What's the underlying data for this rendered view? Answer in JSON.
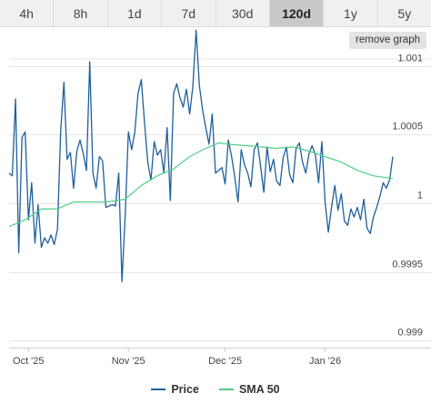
{
  "tabs": [
    {
      "label": "4h",
      "active": false
    },
    {
      "label": "8h",
      "active": false
    },
    {
      "label": "1d",
      "active": false
    },
    {
      "label": "7d",
      "active": false
    },
    {
      "label": "30d",
      "active": false
    },
    {
      "label": "120d",
      "active": true
    },
    {
      "label": "1y",
      "active": false
    },
    {
      "label": "5y",
      "active": false
    }
  ],
  "remove_graph_label": "remove graph",
  "colors": {
    "price": "#1f5f9a",
    "sma": "#4fce8a",
    "grid": "#e6e6e6"
  },
  "chart_data": {
    "type": "line",
    "title": "",
    "xlabel": "",
    "ylabel": "",
    "ylim": [
      0.99895,
      1.00105
    ],
    "yticks": [
      {
        "value": 0.999,
        "label": "0.999"
      },
      {
        "value": 0.9995,
        "label": "0.9995"
      },
      {
        "value": 1.0,
        "label": "1"
      },
      {
        "value": 1.0005,
        "label": "1.0005"
      },
      {
        "value": 1.001,
        "label": "1.001"
      }
    ],
    "xlim": [
      "2025-09-25",
      "2026-01-22"
    ],
    "xticks": [
      {
        "date": "2025-10-01",
        "label": "Oct '25"
      },
      {
        "date": "2025-11-01",
        "label": "Nov '25"
      },
      {
        "date": "2025-12-01",
        "label": "Dec '25"
      },
      {
        "date": "2026-01-01",
        "label": "Jan '26"
      }
    ],
    "grid": true,
    "legend_position": "bottom",
    "series": [
      {
        "name": "Price",
        "points": [
          [
            "2025-09-25",
            1.00022
          ],
          [
            "2025-09-26",
            1.0002
          ],
          [
            "2025-09-27",
            1.00076
          ],
          [
            "2025-09-28",
            0.99964
          ],
          [
            "2025-09-29",
            1.00048
          ],
          [
            "2025-09-30",
            1.00052
          ],
          [
            "2025-10-01",
            0.99988
          ],
          [
            "2025-10-02",
            1.00015
          ],
          [
            "2025-10-03",
            0.99971
          ],
          [
            "2025-10-04",
            0.99999
          ],
          [
            "2025-10-05",
            0.99968
          ],
          [
            "2025-10-06",
            0.99975
          ],
          [
            "2025-10-07",
            0.99971
          ],
          [
            "2025-10-08",
            0.99977
          ],
          [
            "2025-10-09",
            0.9997
          ],
          [
            "2025-10-10",
            0.99981
          ],
          [
            "2025-10-11",
            1.00052
          ],
          [
            "2025-10-12",
            1.00088
          ],
          [
            "2025-10-13",
            1.00032
          ],
          [
            "2025-10-14",
            1.00037
          ],
          [
            "2025-10-15",
            1.00011
          ],
          [
            "2025-10-16",
            1.00038
          ],
          [
            "2025-10-17",
            1.00046
          ],
          [
            "2025-10-18",
            1.00036
          ],
          [
            "2025-10-19",
            1.00024
          ],
          [
            "2025-10-20",
            1.00103
          ],
          [
            "2025-10-21",
            1.00022
          ],
          [
            "2025-10-22",
            1.00011
          ],
          [
            "2025-10-23",
            1.00034
          ],
          [
            "2025-10-24",
            1.00031
          ],
          [
            "2025-10-25",
            0.99997
          ],
          [
            "2025-10-26",
            0.99998
          ],
          [
            "2025-10-27",
            0.99999
          ],
          [
            "2025-10-28",
            0.99998
          ],
          [
            "2025-10-29",
            1.00022
          ],
          [
            "2025-10-30",
            0.99943
          ],
          [
            "2025-10-31",
            0.99991
          ],
          [
            "2025-11-01",
            1.00052
          ],
          [
            "2025-11-02",
            1.00039
          ],
          [
            "2025-11-03",
            1.00052
          ],
          [
            "2025-11-04",
            1.0008
          ],
          [
            "2025-11-05",
            1.0009
          ],
          [
            "2025-11-06",
            1.00059
          ],
          [
            "2025-11-07",
            1.0003
          ],
          [
            "2025-11-08",
            1.00017
          ],
          [
            "2025-11-09",
            1.00045
          ],
          [
            "2025-11-10",
            1.00035
          ],
          [
            "2025-11-11",
            1.00039
          ],
          [
            "2025-11-12",
            1.00022
          ],
          [
            "2025-11-13",
            1.00055
          ],
          [
            "2025-11-14",
            1.00002
          ],
          [
            "2025-11-15",
            1.0008
          ],
          [
            "2025-11-16",
            1.00087
          ],
          [
            "2025-11-17",
            1.00077
          ],
          [
            "2025-11-18",
            1.0007
          ],
          [
            "2025-11-19",
            1.00083
          ],
          [
            "2025-11-20",
            1.00065
          ],
          [
            "2025-11-21",
            1.00085
          ],
          [
            "2025-11-22",
            1.00126
          ],
          [
            "2025-11-23",
            1.00086
          ],
          [
            "2025-11-24",
            1.00068
          ],
          [
            "2025-11-25",
            1.00055
          ],
          [
            "2025-11-26",
            1.00043
          ],
          [
            "2025-11-27",
            1.00065
          ],
          [
            "2025-11-28",
            1.00022
          ],
          [
            "2025-11-29",
            1.00024
          ],
          [
            "2025-11-30",
            1.00026
          ],
          [
            "2025-12-01",
            1.00014
          ],
          [
            "2025-12-02",
            1.00046
          ],
          [
            "2025-12-03",
            1.00034
          ],
          [
            "2025-12-04",
            1.00019
          ],
          [
            "2025-12-05",
            1.00001
          ],
          [
            "2025-12-06",
            1.00039
          ],
          [
            "2025-12-07",
            1.00028
          ],
          [
            "2025-12-08",
            1.00022
          ],
          [
            "2025-12-09",
            1.00012
          ],
          [
            "2025-12-10",
            1.00039
          ],
          [
            "2025-12-11",
            1.00044
          ],
          [
            "2025-12-12",
            1.00027
          ],
          [
            "2025-12-13",
            1.00008
          ],
          [
            "2025-12-14",
            1.00041
          ],
          [
            "2025-12-15",
            1.00023
          ],
          [
            "2025-12-16",
            1.00032
          ],
          [
            "2025-12-17",
            1.00016
          ],
          [
            "2025-12-18",
            1.00013
          ],
          [
            "2025-12-19",
            1.00033
          ],
          [
            "2025-12-20",
            1.00041
          ],
          [
            "2025-12-21",
            1.00021
          ],
          [
            "2025-12-22",
            1.00015
          ],
          [
            "2025-12-23",
            1.0004
          ],
          [
            "2025-12-24",
            1.00044
          ],
          [
            "2025-12-25",
            1.0003
          ],
          [
            "2025-12-26",
            1.00022
          ],
          [
            "2025-12-27",
            1.00036
          ],
          [
            "2025-12-28",
            1.00042
          ],
          [
            "2025-12-29",
            1.00035
          ],
          [
            "2025-12-30",
            1.00015
          ],
          [
            "2025-12-31",
            1.00045
          ],
          [
            "2026-01-01",
            1.00001
          ],
          [
            "2026-01-02",
            0.99979
          ],
          [
            "2026-01-03",
            0.99997
          ],
          [
            "2026-01-04",
            1.00013
          ],
          [
            "2026-01-05",
            0.99995
          ],
          [
            "2026-01-06",
            1.00007
          ],
          [
            "2026-01-07",
            0.99987
          ],
          [
            "2026-01-08",
            0.99984
          ],
          [
            "2026-01-09",
            0.99996
          ],
          [
            "2026-01-10",
            0.9999
          ],
          [
            "2026-01-11",
            0.99997
          ],
          [
            "2026-01-12",
            0.99988
          ],
          [
            "2026-01-13",
            1.00003
          ],
          [
            "2026-01-14",
            0.99982
          ],
          [
            "2026-01-15",
            0.99978
          ],
          [
            "2026-01-16",
            0.9999
          ],
          [
            "2026-01-17",
            0.99997
          ],
          [
            "2026-01-18",
            1.00005
          ],
          [
            "2026-01-19",
            1.00015
          ],
          [
            "2026-01-20",
            1.00011
          ],
          [
            "2026-01-21",
            1.00017
          ],
          [
            "2026-01-22",
            1.00034
          ]
        ]
      },
      {
        "name": "SMA 50",
        "points": [
          [
            "2025-09-25",
            0.99983
          ],
          [
            "2025-09-30",
            0.99988
          ],
          [
            "2025-10-05",
            0.99996
          ],
          [
            "2025-10-10",
            0.99996
          ],
          [
            "2025-10-15",
            1.00001
          ],
          [
            "2025-10-20",
            1.00001
          ],
          [
            "2025-10-25",
            1.00001
          ],
          [
            "2025-10-31",
            1.00003
          ],
          [
            "2025-11-05",
            1.00013
          ],
          [
            "2025-11-10",
            1.0002
          ],
          [
            "2025-11-15",
            1.00025
          ],
          [
            "2025-11-20",
            1.00034
          ],
          [
            "2025-11-25",
            1.0004
          ],
          [
            "2025-11-29",
            1.00044
          ],
          [
            "2025-12-02",
            1.00043
          ],
          [
            "2025-12-07",
            1.00042
          ],
          [
            "2025-12-12",
            1.00041
          ],
          [
            "2025-12-17",
            1.0004
          ],
          [
            "2025-12-22",
            1.00041
          ],
          [
            "2025-12-27",
            1.00038
          ],
          [
            "2026-01-01",
            1.00034
          ],
          [
            "2026-01-06",
            1.0003
          ],
          [
            "2026-01-11",
            1.00024
          ],
          [
            "2026-01-16",
            1.0002
          ],
          [
            "2026-01-22",
            1.00018
          ]
        ]
      }
    ]
  }
}
